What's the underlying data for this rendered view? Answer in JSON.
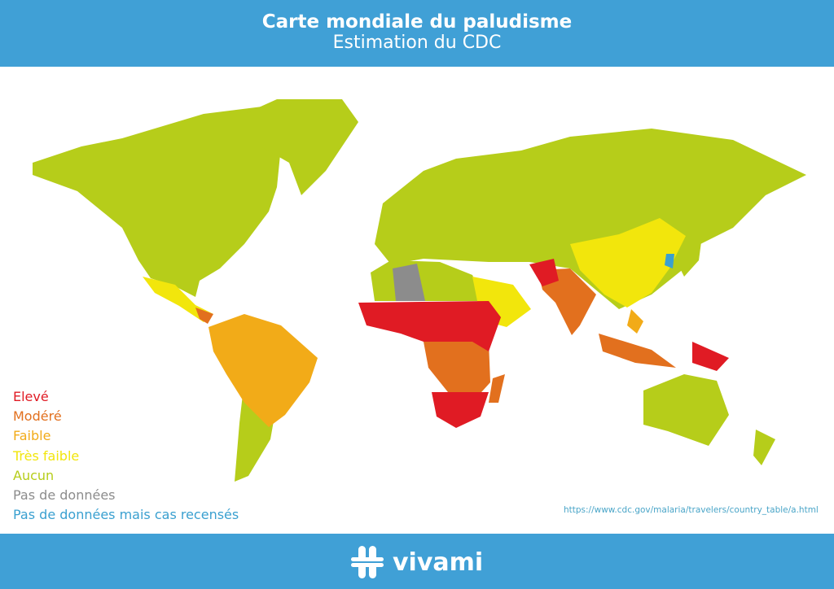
{
  "header": {
    "title": "Carte mondiale du paludisme",
    "subtitle": "Estimation du CDC"
  },
  "legend": [
    {
      "label": "Elevé",
      "color": "#e01b24"
    },
    {
      "label": "Modéré",
      "color": "#e2701e"
    },
    {
      "label": "Faible",
      "color": "#f2ab18"
    },
    {
      "label": "Très faible",
      "color": "#f2e60c"
    },
    {
      "label": "Aucun",
      "color": "#b6cd1a"
    },
    {
      "label": "Pas de données",
      "color": "#8c8c8c"
    },
    {
      "label": "Pas de données mais cas recensés",
      "color": "#3aa0d0"
    }
  ],
  "source_url": "https://www.cdc.gov/malaria/travelers/country_table/a.html",
  "footer": {
    "brand": "vivami",
    "brand_color": "#40a0d6"
  }
}
